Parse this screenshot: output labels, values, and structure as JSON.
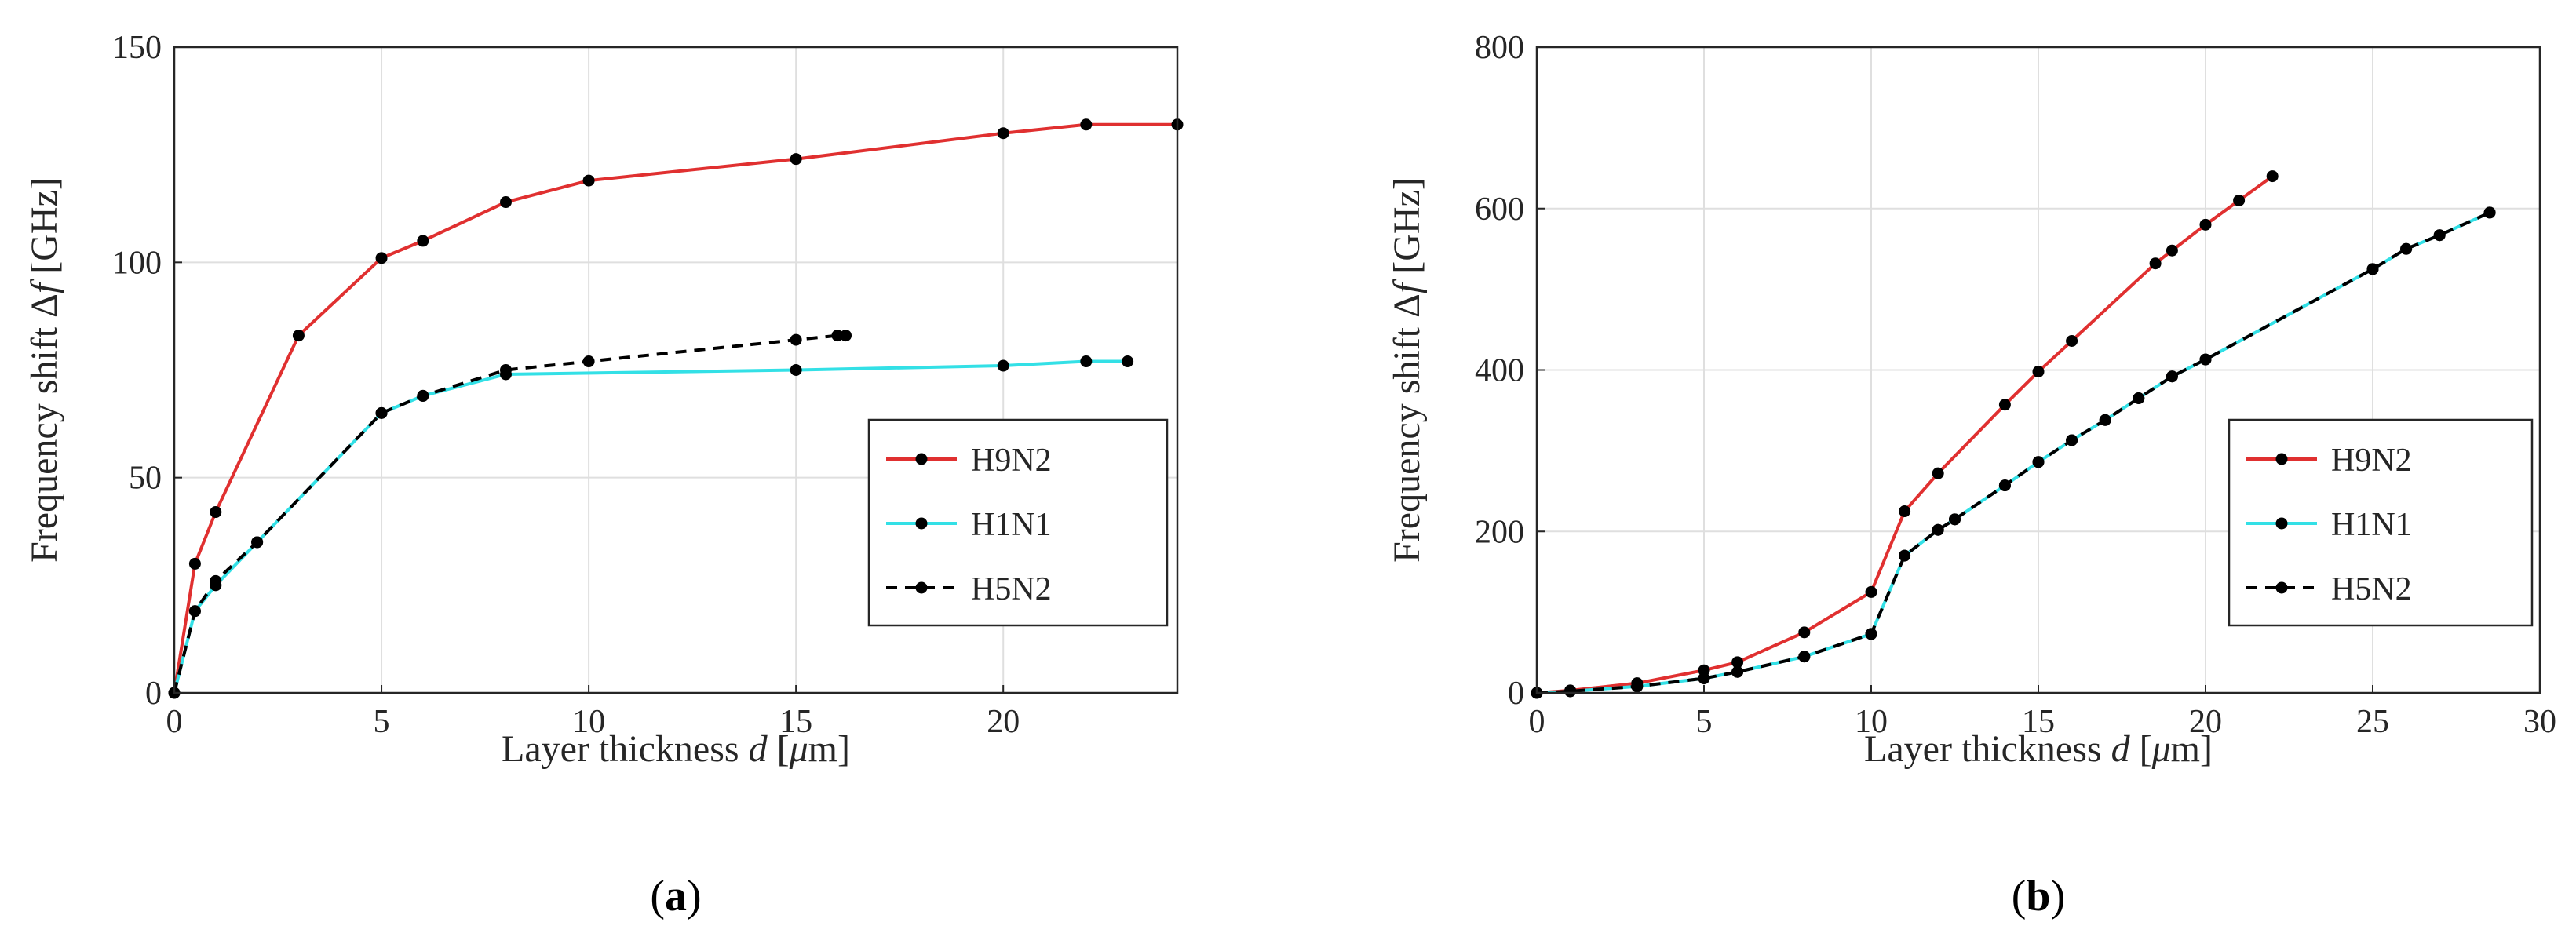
{
  "colors": {
    "H9N2": "#e03030",
    "H1N1": "#33e0e6",
    "H5N2": "#000000",
    "marker": "#000000",
    "grid": "#dfdfdf",
    "axis": "#262626"
  },
  "chart_data": [
    {
      "type": "line",
      "panel_label": "a",
      "xlabel": {
        "prefix": "Layer thickness ",
        "var": "d",
        "open": " [",
        "unit_greek": "μ",
        "unit_rest": "m]"
      },
      "ylabel": {
        "prefix": "Frequency shift ",
        "delta": "Δ",
        "var": "f",
        "unit": " [GHz]"
      },
      "xlim": [
        0,
        24.2
      ],
      "ylim": [
        0,
        150
      ],
      "xticks": [
        0,
        5,
        10,
        15,
        20
      ],
      "yticks": [
        0,
        50,
        100,
        150
      ],
      "grid": true,
      "legend_position": "lower-right",
      "series": [
        {
          "name": "H9N2",
          "style": "solid",
          "x": [
            0,
            0.5,
            1,
            3,
            5,
            6,
            8,
            10,
            15,
            20,
            22,
            24.2
          ],
          "y": [
            0,
            30,
            42,
            83,
            101,
            105,
            114,
            119,
            124,
            130,
            132,
            132
          ]
        },
        {
          "name": "H1N1",
          "style": "solid",
          "x": [
            0,
            0.5,
            1,
            2,
            5,
            6,
            8,
            15,
            20,
            22,
            23
          ],
          "y": [
            0,
            19,
            25,
            35,
            65,
            69,
            74,
            75,
            76,
            77,
            77
          ]
        },
        {
          "name": "H5N2",
          "style": "dashed",
          "x": [
            0,
            0.5,
            1,
            2,
            5,
            6,
            8,
            10,
            15,
            16,
            16.2
          ],
          "y": [
            0,
            19,
            26,
            35,
            65,
            69,
            75,
            77,
            82,
            83,
            83
          ]
        }
      ]
    },
    {
      "type": "line",
      "panel_label": "b",
      "xlabel": {
        "prefix": "Layer thickness ",
        "var": "d",
        "open": " [",
        "unit_greek": "μ",
        "unit_rest": "m]"
      },
      "ylabel": {
        "prefix": "Frequency shift ",
        "delta": "Δ",
        "var": "f",
        "unit": " [GHz]"
      },
      "xlim": [
        0,
        30
      ],
      "ylim": [
        0,
        800
      ],
      "xticks": [
        0,
        5,
        10,
        15,
        20,
        25,
        30
      ],
      "yticks": [
        0,
        200,
        400,
        600,
        800
      ],
      "grid": true,
      "legend_position": "lower-right",
      "series": [
        {
          "name": "H9N2",
          "style": "solid",
          "x": [
            0,
            1,
            3,
            5,
            6,
            8,
            10,
            11,
            12,
            14,
            15,
            16,
            18.5,
            19,
            20,
            21,
            22
          ],
          "y": [
            0,
            3,
            12,
            28,
            38,
            75,
            125,
            225,
            272,
            357,
            398,
            436,
            532,
            548,
            580,
            610,
            640
          ]
        },
        {
          "name": "H1N1",
          "style": "solid",
          "x": [
            0,
            1,
            3,
            5,
            6,
            8,
            10,
            11,
            12,
            12.5,
            14,
            15,
            16,
            17,
            18,
            19,
            20,
            25,
            26,
            27,
            28.5
          ],
          "y": [
            0,
            2,
            8,
            18,
            26,
            45,
            73,
            170,
            202,
            215,
            257,
            286,
            313,
            338,
            365,
            392,
            413,
            525,
            550,
            567,
            595
          ]
        },
        {
          "name": "H5N2",
          "style": "dashed",
          "x": [
            0,
            1,
            3,
            5,
            6,
            8,
            10,
            11,
            12,
            12.5,
            14,
            15,
            16,
            17,
            18,
            19,
            20,
            25,
            26,
            27,
            28.5
          ],
          "y": [
            0,
            2,
            8,
            18,
            26,
            45,
            73,
            170,
            202,
            215,
            257,
            286,
            313,
            338,
            365,
            392,
            413,
            525,
            550,
            567,
            595
          ]
        }
      ]
    }
  ]
}
